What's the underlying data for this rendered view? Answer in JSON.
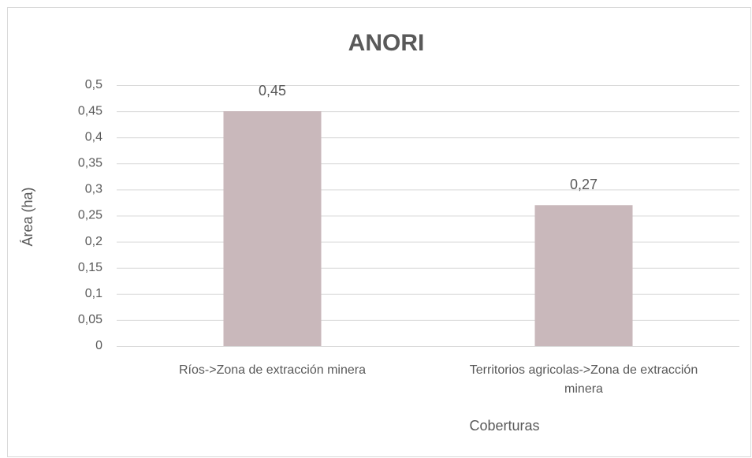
{
  "chart_data": {
    "type": "bar",
    "title": "ANORI",
    "categories": [
      "Ríos->Zona de extracción minera",
      "Territorios agricolas->Zona de extracción minera"
    ],
    "values": [
      0.45,
      0.27
    ],
    "value_labels": [
      "0,45",
      "0,27"
    ],
    "color": "#c9b8bb",
    "x_label": "Coberturas",
    "y_label": "Área (ha)",
    "ylim": [
      0,
      0.5
    ],
    "yticks": [
      0,
      {
        "value": 0.05,
        "label": "0,05"
      },
      {
        "value": 0.1,
        "label": "0,1"
      },
      {
        "value": 0.15,
        "label": "0,15"
      },
      {
        "value": 0.2,
        "label": "0,2"
      },
      {
        "value": 0.25,
        "label": "0,25"
      },
      {
        "value": 0.3,
        "label": "0,3"
      },
      {
        "value": 0.35,
        "label": "0,35"
      },
      {
        "value": 0.4,
        "label": "0,4"
      },
      {
        "value": 0.45,
        "label": "0,45"
      },
      {
        "value": 0.5,
        "label": "0,5"
      }
    ],
    "grid": true
  }
}
